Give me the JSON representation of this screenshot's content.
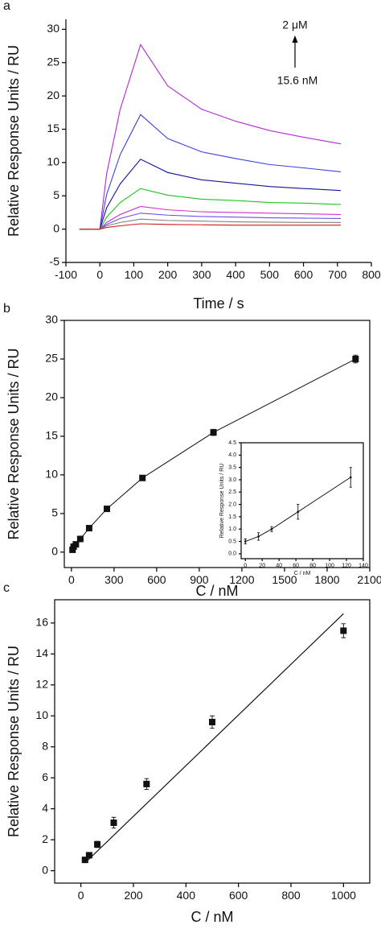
{
  "chart_data": [
    {
      "type": "line",
      "label": "a",
      "xlabel": "Time / s",
      "ylabel": "Relative Response Units / RU",
      "annotations": [
        "2 μM",
        "15.6 nM"
      ],
      "x": [
        -60,
        -20,
        0,
        20,
        60,
        120,
        200,
        300,
        400,
        500,
        600,
        710
      ],
      "series": [
        {
          "color": "#b02ad6",
          "values": [
            0,
            0,
            0,
            8.3,
            18.0,
            27.7,
            21.5,
            18.0,
            16.2,
            14.8,
            13.8,
            12.8
          ]
        },
        {
          "color": "#3f3fe0",
          "values": [
            0,
            0,
            0,
            5.2,
            11.2,
            17.2,
            13.6,
            11.6,
            10.6,
            9.7,
            9.2,
            8.6
          ]
        },
        {
          "color": "#15159a",
          "values": [
            0,
            0,
            0,
            3.2,
            6.8,
            10.5,
            8.5,
            7.4,
            6.9,
            6.4,
            6.1,
            5.8
          ]
        },
        {
          "color": "#1fc21f",
          "values": [
            0,
            0,
            0,
            1.8,
            4.0,
            6.1,
            5.1,
            4.5,
            4.3,
            4.0,
            3.9,
            3.7
          ]
        },
        {
          "color": "#d030d0",
          "values": [
            0,
            0,
            0,
            1.0,
            2.2,
            3.4,
            2.9,
            2.6,
            2.5,
            2.4,
            2.3,
            2.2
          ]
        },
        {
          "color": "#6a4ee8",
          "values": [
            0,
            0,
            0,
            0.7,
            1.6,
            2.4,
            2.1,
            1.9,
            1.8,
            1.7,
            1.65,
            1.6
          ]
        },
        {
          "color": "#808080",
          "values": [
            0,
            0,
            0,
            0.5,
            1.0,
            1.5,
            1.3,
            1.2,
            1.1,
            1.05,
            1.0,
            1.0
          ]
        },
        {
          "color": "#d01818",
          "values": [
            0,
            0,
            0,
            0.25,
            0.5,
            0.8,
            0.7,
            0.65,
            0.6,
            0.6,
            0.6,
            0.6
          ]
        }
      ],
      "xlim": [
        -100,
        800
      ],
      "xticks": [
        -100,
        0,
        100,
        200,
        300,
        400,
        500,
        600,
        700,
        800
      ],
      "ylim": [
        -5,
        31.5
      ],
      "yticks": [
        -5,
        0,
        5,
        10,
        15,
        20,
        25,
        30
      ]
    },
    {
      "type": "scatter",
      "label": "b",
      "xlabel": "C / nM",
      "ylabel": "Relative Response Units / RU",
      "x": [
        7.8,
        15.6,
        31.25,
        62.5,
        125,
        250,
        500,
        1000,
        2000
      ],
      "values": [
        0.3,
        0.7,
        1.0,
        1.7,
        3.1,
        5.6,
        9.6,
        15.5,
        25.0
      ],
      "errors": [
        0.2,
        0.2,
        0.2,
        0.3,
        0.3,
        0.3,
        0.3,
        0.4,
        0.5
      ],
      "connect": true,
      "color": "#111111",
      "xlim": [
        -50,
        2100
      ],
      "xticks": [
        0,
        300,
        600,
        900,
        1200,
        1500,
        1800,
        2100
      ],
      "ylim": [
        -2,
        30
      ],
      "yticks": [
        0,
        5,
        10,
        15,
        20,
        25,
        30
      ]
    },
    {
      "type": "scatter",
      "xlabel": "C / nM",
      "ylabel": "Relative Response Units / RU",
      "x": [
        0,
        15.6,
        31.25,
        62.5,
        125
      ],
      "values": [
        0.5,
        0.7,
        1.0,
        1.7,
        3.1
      ],
      "errors": [
        0.1,
        0.15,
        0.1,
        0.3,
        0.4
      ],
      "connect": true,
      "color": "#111111",
      "xlim": [
        -5,
        140
      ],
      "xticks": [
        0,
        20,
        40,
        60,
        80,
        100,
        120,
        140
      ],
      "ylim": [
        -0.2,
        4.5
      ],
      "yticks": [
        {
          "value": 0,
          "label": "0.0"
        },
        0.5,
        {
          "value": 1,
          "label": "1.0"
        },
        1.5,
        {
          "value": 2,
          "label": "2.0"
        },
        2.5,
        {
          "value": 3,
          "label": "3.0"
        },
        3.5,
        {
          "value": 4,
          "label": "4.0"
        },
        4.5
      ]
    },
    {
      "type": "scatter",
      "label": "c",
      "xlabel": "C / nM",
      "ylabel": "Relative Response Units / RU",
      "x": [
        15.6,
        31.25,
        62.5,
        125,
        250,
        500,
        1000
      ],
      "values": [
        0.7,
        1.0,
        1.7,
        3.1,
        5.6,
        9.6,
        15.5
      ],
      "errors": [
        0.1,
        0.1,
        0.2,
        0.35,
        0.35,
        0.4,
        0.45
      ],
      "fit": {
        "x": [
          15.6,
          1000
        ],
        "y": [
          0.5,
          16.6
        ]
      },
      "color": "#111111",
      "xlim": [
        -100,
        1100
      ],
      "xticks": [
        0,
        200,
        400,
        600,
        800,
        1000
      ],
      "ylim": [
        -0.8,
        17.5
      ],
      "yticks": [
        0,
        2,
        4,
        6,
        8,
        10,
        12,
        14,
        16
      ]
    }
  ]
}
